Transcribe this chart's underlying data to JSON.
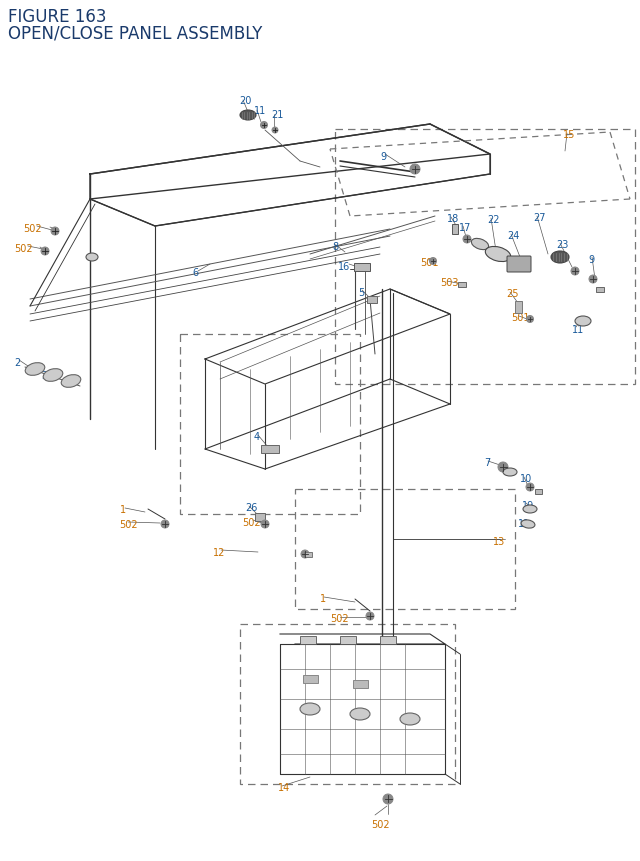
{
  "title_line1": "FIGURE 163",
  "title_line2": "OPEN/CLOSE PANEL ASSEMBLY",
  "title_color": "#1a3a6b",
  "bg_color": "#ffffff",
  "orange": "#c87000",
  "blue": "#1a5a9a",
  "dark": "#222222",
  "gray": "#555555",
  "fig_width": 6.4,
  "fig_height": 8.62,
  "dpi": 100
}
